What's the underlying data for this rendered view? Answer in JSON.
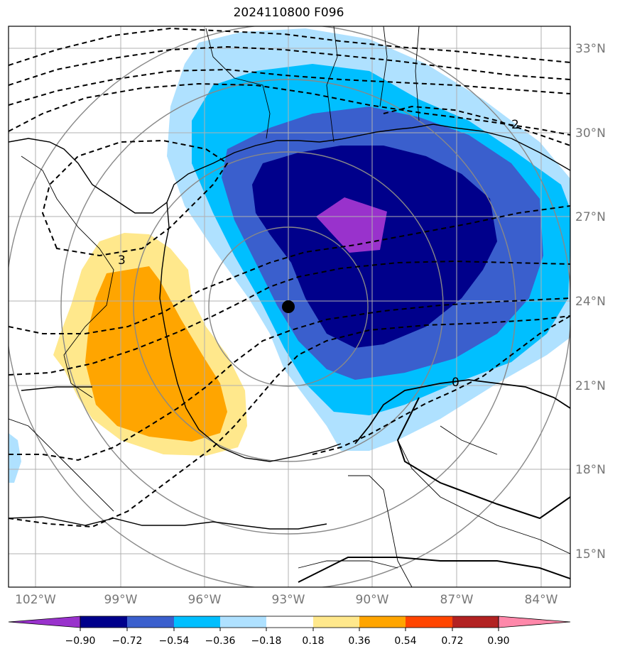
{
  "title": "2024110800 F096",
  "map": {
    "lat_labels": [
      "33°N",
      "30°N",
      "27°N",
      "24°N",
      "21°N",
      "18°N",
      "15°N"
    ],
    "lon_labels": [
      "102°W",
      "99°W",
      "96°W",
      "93°W",
      "90°W",
      "87°W",
      "84°W"
    ],
    "contour_labels": [
      "3",
      "2",
      "0"
    ]
  },
  "colorbar": {
    "tick_labels": [
      "−0.90",
      "−0.72",
      "−0.54",
      "−0.36",
      "−0.18",
      "0.18",
      "0.36",
      "0.54",
      "0.72",
      "0.90"
    ],
    "colors": [
      "#9932cc",
      "#00008b",
      "#3a5fcd",
      "#00bfff",
      "#afe1ff",
      "#ffffff",
      "#ffe88c",
      "#ffa500",
      "#ff4500",
      "#b22222",
      "#ff88aa"
    ]
  },
  "colors": {
    "grid": "#b0b0b0",
    "range_ring": "#888888",
    "coast": "#000000",
    "axis_text": "#777777"
  },
  "icons": [
    "storm-center-marker"
  ]
}
